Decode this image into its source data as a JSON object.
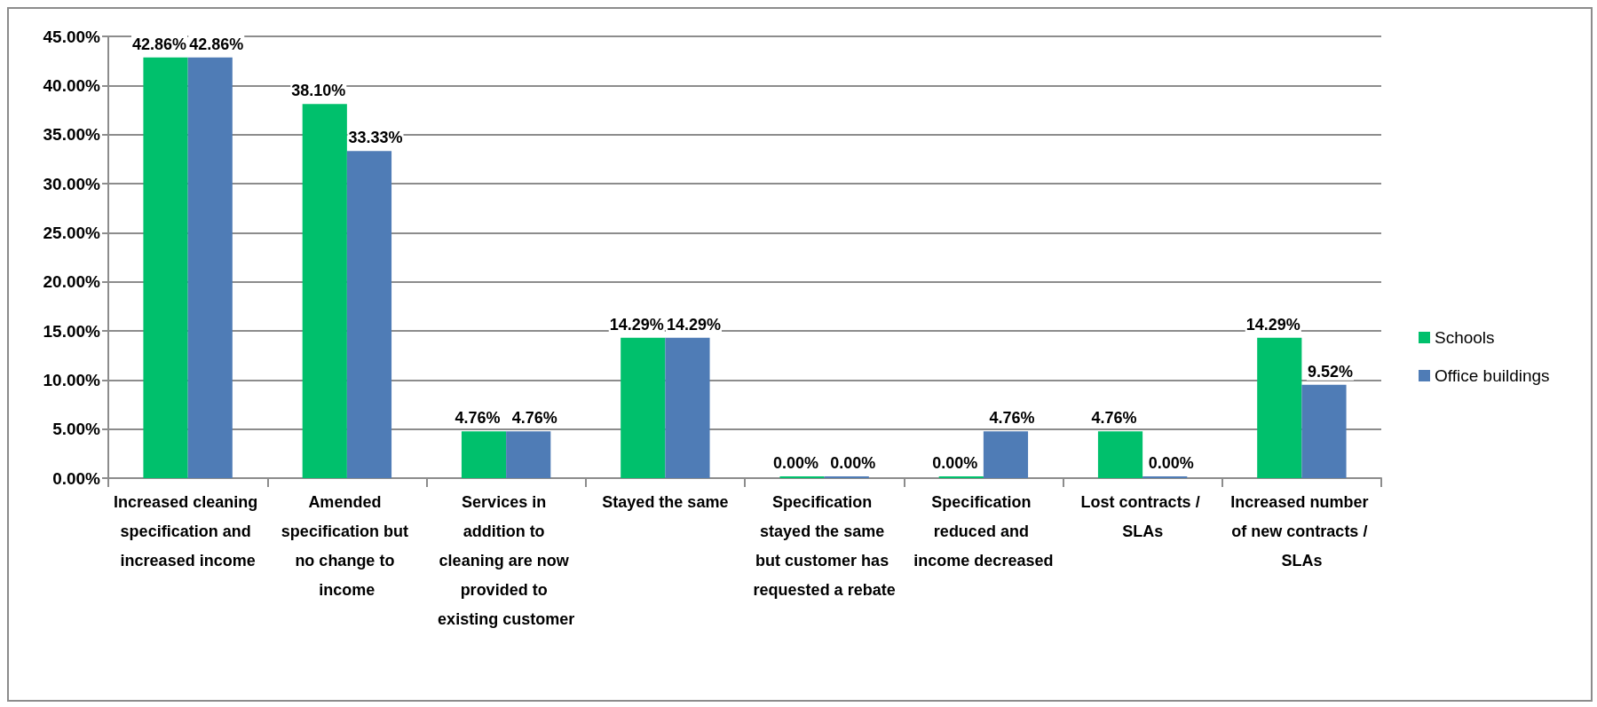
{
  "chart_data": {
    "type": "bar",
    "categories": [
      "Increased cleaning specification and increased income",
      "Amended specification but no change to income",
      "Services in addition to cleaning are now provided to existing customer",
      "Stayed the same",
      "Specification stayed the same but customer has requested a rebate",
      "Specification reduced and income decreased",
      "Lost contracts / SLAs",
      "Increased number of new contracts / SLAs"
    ],
    "series": [
      {
        "name": "Schools",
        "color": "#00c06c",
        "values": [
          42.86,
          38.1,
          4.76,
          14.29,
          0,
          0,
          4.76,
          14.29
        ],
        "value_labels": [
          "42.86%",
          "38.10%",
          "4.76%",
          "14.29%",
          "0.00%",
          "0.00%",
          "4.76%",
          "14.29%"
        ]
      },
      {
        "name": "Office buildings",
        "color": "#4f7cb6",
        "values": [
          42.86,
          33.33,
          4.76,
          14.29,
          0,
          4.76,
          0,
          9.52
        ],
        "value_labels": [
          "42.86%",
          "33.33%",
          "4.76%",
          "14.29%",
          "0.00%",
          "4.76%",
          "0.00%",
          "9.52%"
        ]
      }
    ],
    "ylim": [
      0,
      45
    ],
    "yticks": [
      {
        "value": 0,
        "label": "0.00%"
      },
      {
        "value": 5,
        "label": "5.00%"
      },
      {
        "value": 10,
        "label": "10.00%"
      },
      {
        "value": 15,
        "label": "15.00%"
      },
      {
        "value": 20,
        "label": "20.00%"
      },
      {
        "value": 25,
        "label": "25.00%"
      },
      {
        "value": 30,
        "label": "30.00%"
      },
      {
        "value": 35,
        "label": "35.00%"
      },
      {
        "value": 40,
        "label": "40.00%"
      },
      {
        "value": 45,
        "label": "45.00%"
      }
    ],
    "grid": "y",
    "legend": "right"
  }
}
